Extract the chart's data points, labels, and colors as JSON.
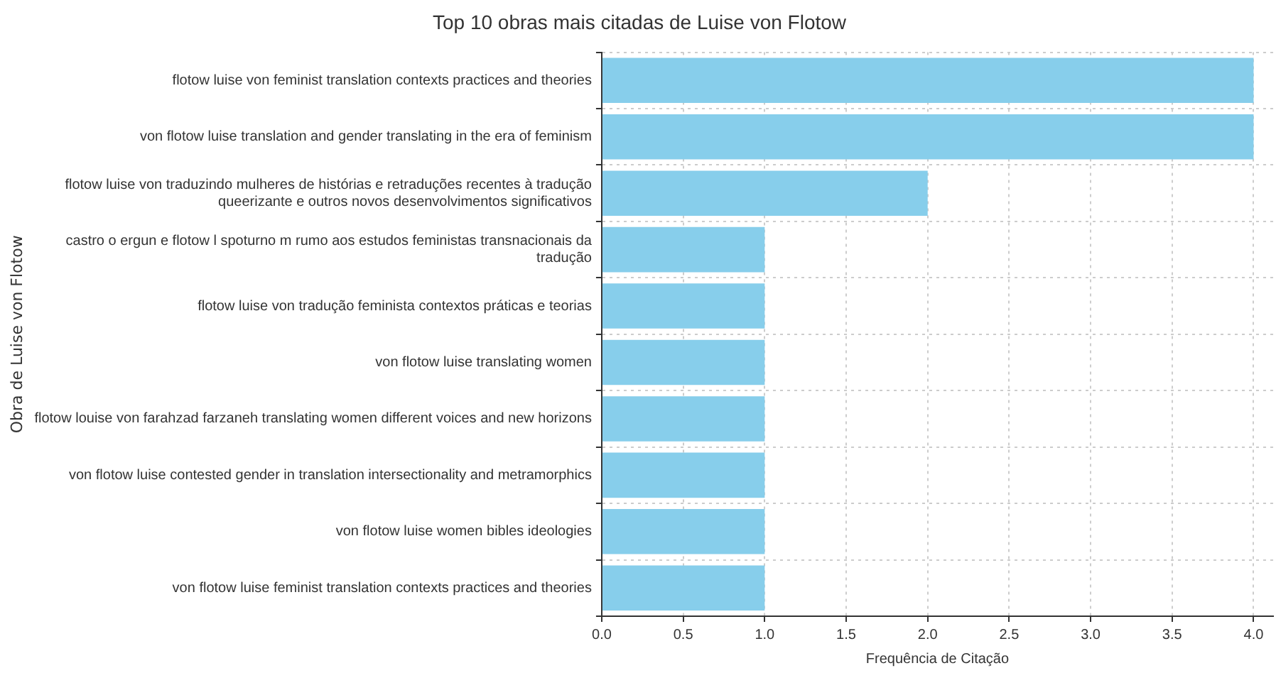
{
  "chart_data": {
    "type": "bar",
    "orientation": "horizontal",
    "title": "Top 10 obras mais citadas de Luise von Flotow",
    "xlabel": "Frequência de Citação",
    "ylabel": "Obra de Luise von Flotow",
    "categories": [
      "flotow luise von feminist translation contexts practices and theories",
      "von flotow luise translation and gender translating in the era of feminism",
      "flotow luise von traduzindo mulheres de histórias e retraduções recentes à tradução queerizante e outros novos desenvolvimentos significativos",
      "castro o ergun e flotow l spoturno m rumo aos estudos feministas transnacionais da tradução",
      "flotow luise von tradução feminista contextos práticas e teorias",
      "von flotow luise translating women",
      "flotow louise von farahzad farzaneh translating women different voices and new horizons",
      "von flotow luise contested gender in translation intersectionality and metramorphics",
      "von flotow luise women bibles ideologies",
      "von flotow luise feminist translation contexts practices and theories"
    ],
    "values": [
      4,
      4,
      2,
      1,
      1,
      1,
      1,
      1,
      1,
      1
    ],
    "color": "#87ceeb",
    "xlim": [
      0,
      4.12
    ],
    "xticks": [
      {
        "value": 0,
        "label": "0.0"
      },
      {
        "value": 0.5,
        "label": "0.5"
      },
      {
        "value": 1,
        "label": "1.0"
      },
      {
        "value": 1.5,
        "label": "1.5"
      },
      {
        "value": 2,
        "label": "2.0"
      },
      {
        "value": 2.5,
        "label": "2.5"
      },
      {
        "value": 3,
        "label": "3.0"
      },
      {
        "value": 3.5,
        "label": "3.5"
      },
      {
        "value": 4,
        "label": "4.0"
      }
    ],
    "grid": true
  }
}
